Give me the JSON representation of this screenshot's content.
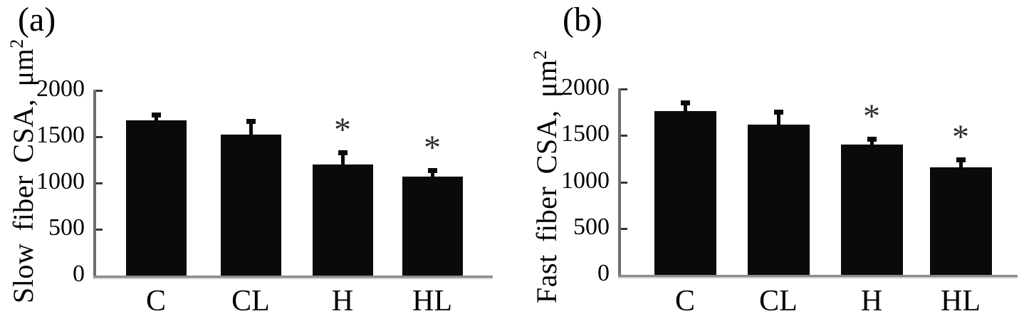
{
  "figure": {
    "description": "Two-panel bar chart of muscle fiber cross-sectional area",
    "background": "#ffffff"
  },
  "style": {
    "bar_color": "#0a0a0a",
    "axis_color": "#6e6e6e",
    "tick_color": "#383838",
    "baseline_color": "#8a8a8a",
    "text_color": "#000000",
    "asterisk_color": "#2f2f2f"
  },
  "chart_data": [
    {
      "type": "bar",
      "panel_label": "(a)",
      "title": "",
      "xlabel": "",
      "ylabel": "Slow fiber CSA, μm",
      "ylabel_sup": "2",
      "categories": [
        "C",
        "CL",
        "H",
        "HL"
      ],
      "values": [
        1680,
        1520,
        1200,
        1070
      ],
      "errors": [
        85,
        170,
        155,
        95
      ],
      "annotations": [
        "",
        "",
        "*",
        "*"
      ],
      "ylim": [
        0,
        2000
      ],
      "yticks": [
        0,
        500,
        1000,
        1500,
        2000
      ],
      "grid": false,
      "legend": "none"
    },
    {
      "type": "bar",
      "panel_label": "(b)",
      "title": "",
      "xlabel": "",
      "ylabel": "Fast fiber CSA, μm",
      "ylabel_sup": "2",
      "categories": [
        "C",
        "CL",
        "H",
        "HL"
      ],
      "values": [
        1760,
        1620,
        1400,
        1160
      ],
      "errors": [
        115,
        160,
        85,
        105
      ],
      "annotations": [
        "",
        "",
        "*",
        "*"
      ],
      "ylim": [
        0,
        2000
      ],
      "yticks": [
        0,
        500,
        1000,
        1500,
        2000
      ],
      "grid": false,
      "legend": "none"
    }
  ]
}
